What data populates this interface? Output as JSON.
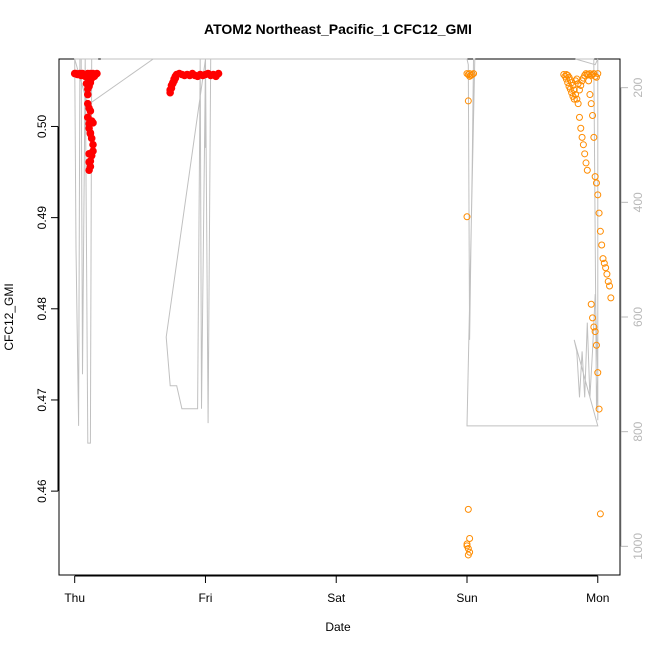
{
  "chart_data": {
    "type": "scatter",
    "title": "ATOM2 Northeast_Pacific_1 CFC12_GMI",
    "xlabel": "Date",
    "ylabel": "CFC12_GMI",
    "x_ticks": [
      "Thu",
      "Fri",
      "Sat",
      "Sun",
      "Mon"
    ],
    "xlim": [
      -0.12,
      4.17
    ],
    "ylim": [
      0.4508,
      0.5074
    ],
    "y_ticks": [
      0.46,
      0.47,
      0.48,
      0.49,
      0.5
    ],
    "y_tick_labels": [
      "0.46",
      "0.47",
      "0.48",
      "0.49",
      "0.50"
    ],
    "right_axis": {
      "label": "",
      "ylim_inverted": [
        150,
        1050
      ],
      "ticks": [
        200,
        400,
        600,
        800,
        1000
      ],
      "tick_labels": [
        "200",
        "400",
        "600",
        "800",
        "1000"
      ],
      "color": "#b8b8b8"
    },
    "altitude_trace": {
      "name": "",
      "color": "#c0c0c0",
      "x": [
        0.0,
        0.01,
        0.03,
        0.04,
        0.05,
        0.06,
        0.08,
        0.1,
        0.12,
        0.13,
        0.14,
        0.15,
        0.18,
        0.18,
        0.0,
        0.1,
        0.6,
        1.0,
        1.0,
        1.0,
        0.7,
        0.72,
        0.73,
        0.78,
        0.82,
        0.9,
        0.92,
        0.94,
        0.96,
        0.97,
        1.0,
        1.02,
        1.04,
        1.06,
        1.08,
        1.1,
        1.1,
        1.0,
        0.4,
        0.2,
        3.0,
        3.01,
        3.02,
        3.03,
        3.04,
        3.05,
        3.06,
        3.0,
        3.0,
        4.0,
        3.82,
        3.84,
        3.86,
        3.88,
        3.9,
        3.92,
        3.94,
        3.96,
        3.98,
        4.0,
        3.99,
        3.97,
        3.95,
        3.93,
        3.91,
        3.89,
        3.87,
        3.85,
        3.83,
        3.98,
        4.0,
        4.0
      ],
      "y": [
        150,
        480,
        790,
        150,
        150,
        700,
        150,
        820,
        820,
        150,
        150,
        150,
        150,
        150,
        150,
        230,
        150,
        150,
        305,
        150,
        635,
        690,
        720,
        720,
        760,
        760,
        760,
        760,
        150,
        760,
        150,
        785,
        150,
        150,
        150,
        150,
        150,
        150,
        150,
        150,
        150,
        160,
        640,
        480,
        340,
        150,
        150,
        790,
        790,
        790,
        640,
        660,
        740,
        660,
        740,
        610,
        740,
        660,
        560,
        700,
        760,
        150,
        150,
        150,
        150,
        150,
        150,
        150,
        150,
        160,
        150,
        780
      ]
    },
    "series": [
      {
        "name": "",
        "color": "#ff0000",
        "x": [
          0.0,
          0.01,
          0.02,
          0.03,
          0.04,
          0.05,
          0.06,
          0.07,
          0.08,
          0.09,
          0.1,
          0.11,
          0.12,
          0.13,
          0.14,
          0.15,
          0.16,
          0.17,
          0.1,
          0.1,
          0.11,
          0.11,
          0.12,
          0.13,
          0.14,
          0.14,
          0.13,
          0.12,
          0.12,
          0.11,
          0.11,
          0.11,
          0.12,
          0.13,
          0.14,
          0.12,
          0.11,
          0.1,
          0.09,
          0.1,
          0.11,
          0.12,
          0.13,
          0.12,
          0.11
        ],
        "y": [
          0.5058,
          0.5058,
          0.5057,
          0.5057,
          0.5058,
          0.5056,
          0.5058,
          0.5057,
          0.5055,
          0.5057,
          0.5058,
          0.5056,
          0.5058,
          0.5057,
          0.5058,
          0.5055,
          0.5057,
          0.5058,
          0.5025,
          0.501,
          0.5003,
          0.4998,
          0.4993,
          0.4987,
          0.498,
          0.4973,
          0.4968,
          0.4962,
          0.4956,
          0.4952,
          0.4961,
          0.497,
          0.4992,
          0.5006,
          0.5004,
          0.5017,
          0.502,
          0.5035,
          0.5047,
          0.5041,
          0.5044,
          0.505,
          0.5053,
          0.5048,
          0.5051
        ],
        "filled": true
      },
      {
        "name": "",
        "color": "#ff0000",
        "x": [
          0.73,
          0.74,
          0.75,
          0.76,
          0.77,
          0.78,
          0.8,
          0.82,
          0.84,
          0.86,
          0.88,
          0.9,
          0.92,
          0.94,
          0.96,
          0.98,
          1.0,
          1.02,
          1.04,
          1.06,
          1.08,
          1.1,
          0.73,
          0.74,
          0.75,
          0.76,
          0.77
        ],
        "y": [
          0.5037,
          0.5042,
          0.5048,
          0.5052,
          0.5055,
          0.5057,
          0.5058,
          0.5057,
          0.5056,
          0.5057,
          0.5056,
          0.5058,
          0.5056,
          0.5055,
          0.5057,
          0.5056,
          0.5057,
          0.5058,
          0.5056,
          0.5057,
          0.5055,
          0.5058,
          0.504,
          0.5045,
          0.5047,
          0.505,
          0.5053
        ],
        "filled": true
      },
      {
        "name": "",
        "color": "#ff8c00",
        "x": [
          3.0,
          3.01,
          3.02,
          3.03,
          3.04,
          3.05,
          3.02,
          3.01,
          3.0,
          3.01,
          3.02,
          3.0,
          3.01,
          3.02,
          3.01,
          3.0
        ],
        "y": [
          0.5058,
          0.5057,
          0.5058,
          0.5056,
          0.5057,
          0.5058,
          0.5055,
          0.5028,
          0.4901,
          0.458,
          0.4548,
          0.4542,
          0.4537,
          0.4533,
          0.453,
          0.454
        ],
        "filled": false
      },
      {
        "name": "",
        "color": "#ff8c00",
        "x": [
          3.74,
          3.75,
          3.76,
          3.77,
          3.78,
          3.79,
          3.8,
          3.81,
          3.82,
          3.83,
          3.84,
          3.85,
          3.86,
          3.87,
          3.88,
          3.89,
          3.9,
          3.91,
          3.92,
          3.93,
          3.94,
          3.95,
          3.96,
          3.97,
          3.98,
          3.99,
          4.0,
          3.76,
          3.77,
          3.78,
          3.79,
          3.8,
          3.81,
          3.82,
          3.83,
          3.84,
          3.85,
          3.86,
          3.87,
          3.88,
          3.89,
          3.9,
          3.91,
          3.92
        ],
        "y": [
          0.5057,
          0.5055,
          0.5052,
          0.5048,
          0.5044,
          0.5041,
          0.5037,
          0.5033,
          0.503,
          0.505,
          0.5052,
          0.5047,
          0.504,
          0.5045,
          0.505,
          0.5053,
          0.5056,
          0.5058,
          0.5057,
          0.5057,
          0.5058,
          0.5056,
          0.5057,
          0.5058,
          0.5055,
          0.5054,
          0.5058,
          0.5057,
          0.5056,
          0.5054,
          0.5051,
          0.5048,
          0.5045,
          0.504,
          0.5035,
          0.503,
          0.5025,
          0.501,
          0.4998,
          0.4988,
          0.498,
          0.497,
          0.496,
          0.4952
        ],
        "filled": false
      },
      {
        "name": "",
        "color": "#ff8c00",
        "x": [
          3.93,
          3.94,
          3.95,
          3.96,
          3.97,
          3.98,
          3.99,
          4.0,
          4.01,
          4.02,
          4.03,
          4.04,
          4.05,
          4.06,
          4.07,
          4.08,
          4.09,
          4.1,
          3.95,
          3.96,
          3.97,
          3.98,
          3.99,
          4.0,
          4.01,
          4.02
        ],
        "y": [
          0.505,
          0.5035,
          0.5025,
          0.5012,
          0.4988,
          0.4945,
          0.4938,
          0.4925,
          0.4905,
          0.4885,
          0.487,
          0.4855,
          0.485,
          0.4845,
          0.4838,
          0.483,
          0.4825,
          0.4812,
          0.4805,
          0.479,
          0.478,
          0.4775,
          0.476,
          0.473,
          0.469,
          0.4575
        ],
        "filled": false
      }
    ]
  }
}
